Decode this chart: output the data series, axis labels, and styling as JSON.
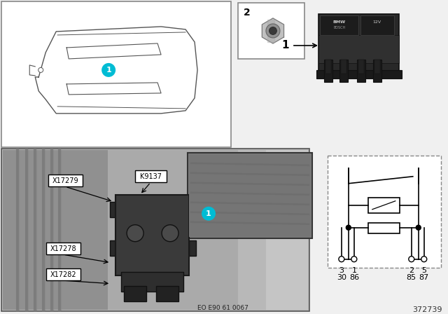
{
  "bg_color": "#f0f0f0",
  "white": "#ffffff",
  "border_color": "#555555",
  "cyan_color": "#00bcd4",
  "part_number": "372739",
  "doc_number": "EO E90 61 0067",
  "label_x17279": "X17279",
  "label_k9137": "K9137",
  "label_x17278": "X17278",
  "label_x17282": "X17282",
  "pin_labels_top": [
    "3",
    "1",
    "2",
    "5"
  ],
  "pin_labels_bottom": [
    "30",
    "86",
    "85",
    "87"
  ],
  "relay_label": "1",
  "nut_label": "2"
}
